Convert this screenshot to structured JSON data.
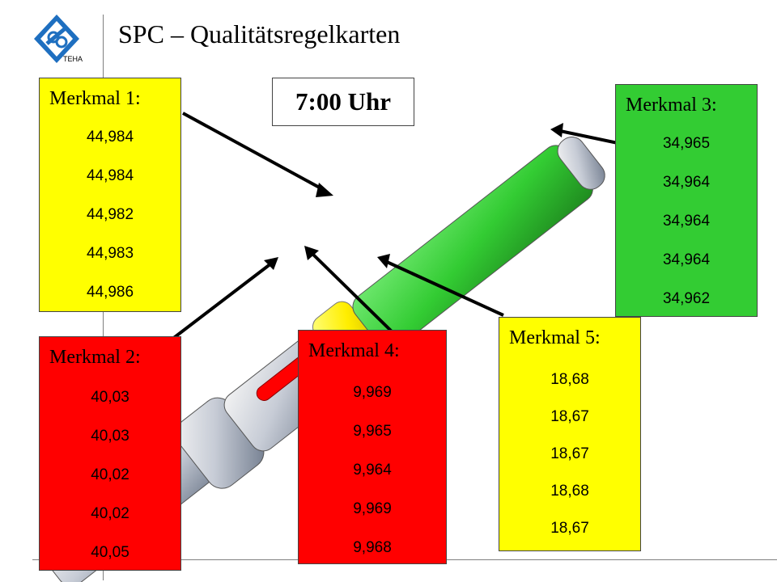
{
  "header": {
    "title": "SPC – Qualitätsregelkarten",
    "logo_text": "TEHA"
  },
  "time": "7:00 Uhr",
  "merkmale": [
    {
      "label": "Merkmal 1:",
      "color": "#ffff00",
      "values": [
        "44,984",
        "44,984",
        "44,982",
        "44,983",
        "44,986"
      ]
    },
    {
      "label": "Merkmal 2:",
      "color": "#ff0000",
      "values": [
        "40,03",
        "40,03",
        "40,02",
        "40,02",
        "40,05"
      ]
    },
    {
      "label": "Merkmal 3:",
      "color": "#33cc33",
      "values": [
        "34,965",
        "34,964",
        "34,964",
        "34,964",
        "34,962"
      ]
    },
    {
      "label": "Merkmal 4:",
      "color": "#ff0000",
      "values": [
        "9,969",
        "9,965",
        "9,964",
        "9,969",
        "9,968"
      ]
    },
    {
      "label": "Merkmal 5:",
      "color": "#ffff00",
      "values": [
        "18,68",
        "18,67",
        "18,67",
        "18,68",
        "18,67"
      ]
    }
  ]
}
